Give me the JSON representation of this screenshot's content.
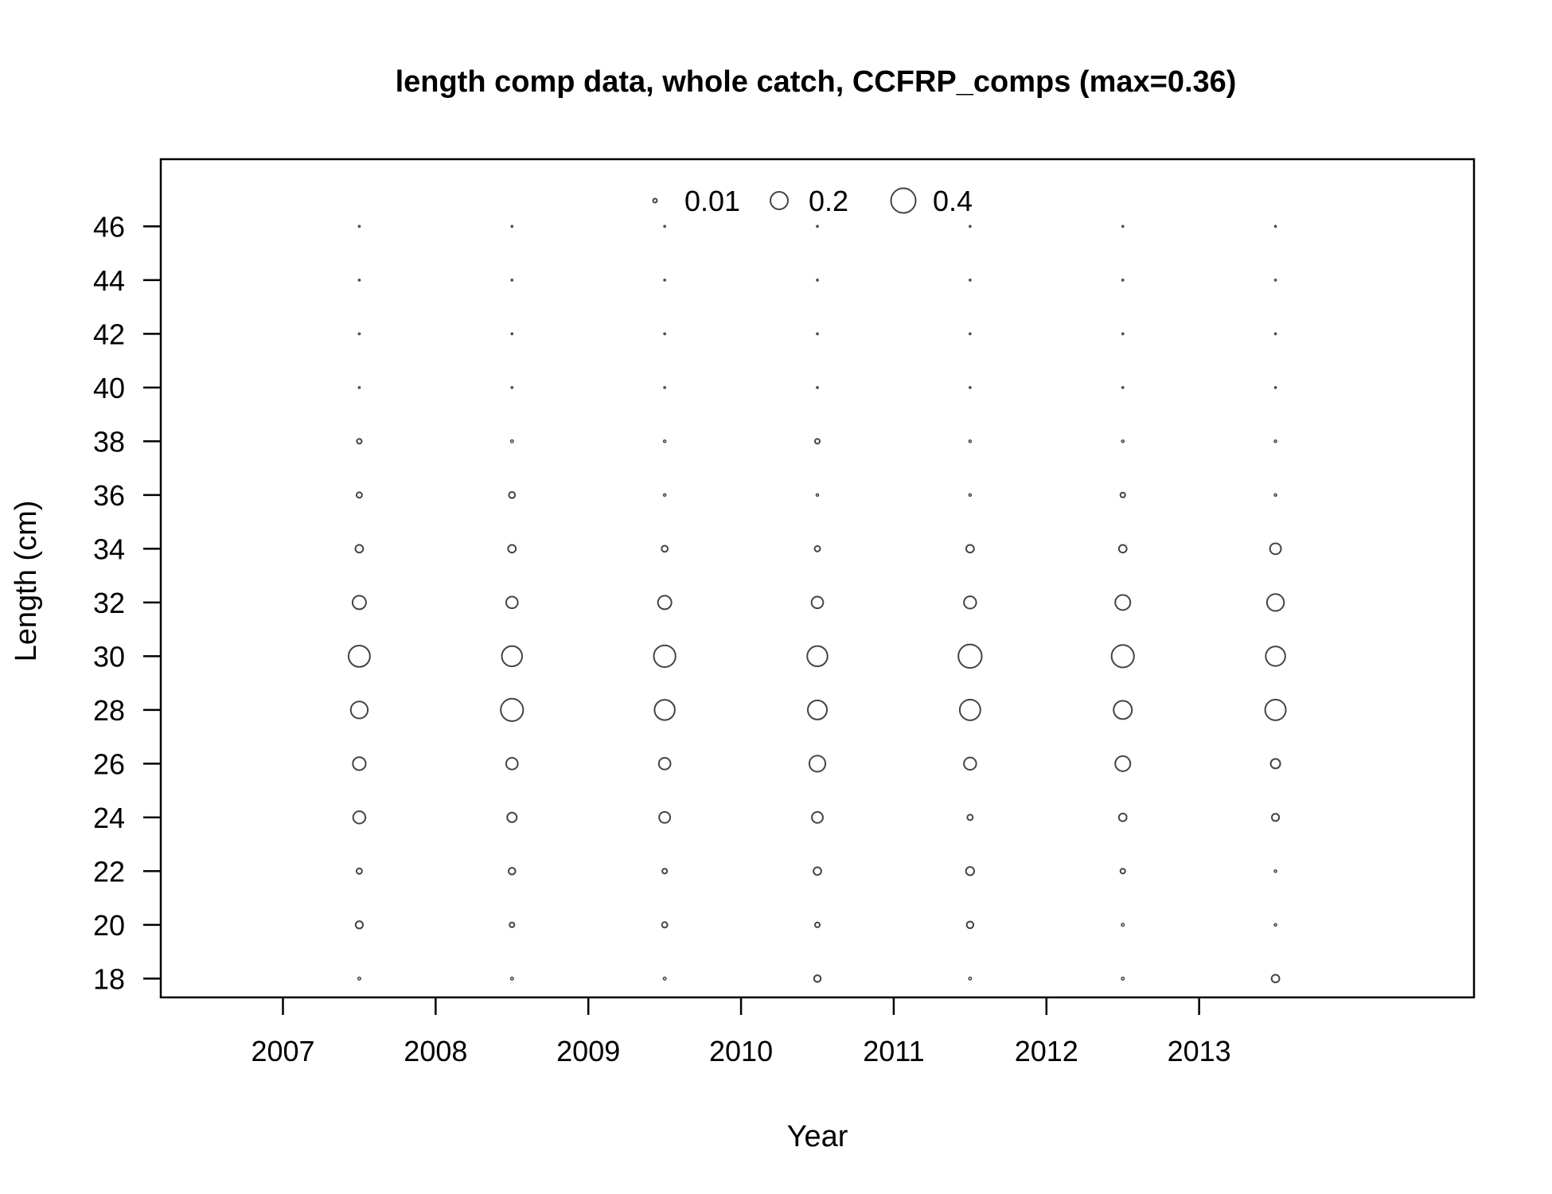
{
  "chart_data": {
    "type": "scatter",
    "title": "length comp data, whole catch, CCFRP_comps (max=0.36)",
    "xlabel": "Year",
    "ylabel": "Length (cm)",
    "xlim": [
      2006.2,
      2014.8
    ],
    "ylim": [
      17.3,
      48.5
    ],
    "x_ticks": [
      2007,
      2008,
      2009,
      2010,
      2011,
      2012,
      2013
    ],
    "y_ticks": [
      18,
      20,
      22,
      24,
      26,
      28,
      30,
      32,
      34,
      36,
      38,
      40,
      42,
      44,
      46
    ],
    "legend": {
      "placement": "top-center",
      "entries": [
        {
          "label": "0.01",
          "value": 0.01
        },
        {
          "label": "0.2",
          "value": 0.2
        },
        {
          "label": "0.4",
          "value": 0.4
        }
      ]
    },
    "x": [
      2007.5,
      2008.5,
      2009.5,
      2010.5,
      2011.5,
      2012.5,
      2013.5
    ],
    "lengths": [
      18,
      20,
      22,
      24,
      26,
      28,
      30,
      32,
      34,
      36,
      38,
      40,
      42,
      44,
      46
    ],
    "proportions": [
      [
        0.005,
        0.035,
        0.02,
        0.1,
        0.11,
        0.19,
        0.3,
        0.12,
        0.04,
        0.02,
        0.015,
        0.002,
        0.002,
        0.002,
        0.002
      ],
      [
        0.005,
        0.015,
        0.03,
        0.06,
        0.09,
        0.33,
        0.27,
        0.09,
        0.04,
        0.025,
        0.005,
        0.002,
        0.002,
        0.002,
        0.002
      ],
      [
        0.005,
        0.02,
        0.015,
        0.08,
        0.09,
        0.27,
        0.31,
        0.12,
        0.025,
        0.004,
        0.004,
        0.002,
        0.002,
        0.002,
        0.002
      ],
      [
        0.03,
        0.015,
        0.04,
        0.08,
        0.17,
        0.24,
        0.27,
        0.09,
        0.02,
        0.004,
        0.015,
        0.002,
        0.002,
        0.002,
        0.002
      ],
      [
        0.005,
        0.03,
        0.045,
        0.02,
        0.1,
        0.28,
        0.36,
        0.1,
        0.04,
        0.004,
        0.004,
        0.002,
        0.002,
        0.002,
        0.002
      ],
      [
        0.005,
        0.005,
        0.015,
        0.04,
        0.15,
        0.22,
        0.33,
        0.15,
        0.04,
        0.015,
        0.004,
        0.002,
        0.002,
        0.002,
        0.002
      ],
      [
        0.04,
        0.004,
        0.004,
        0.035,
        0.06,
        0.28,
        0.25,
        0.19,
        0.08,
        0.004,
        0.004,
        0.002,
        0.002,
        0.002,
        0.002
      ]
    ]
  }
}
